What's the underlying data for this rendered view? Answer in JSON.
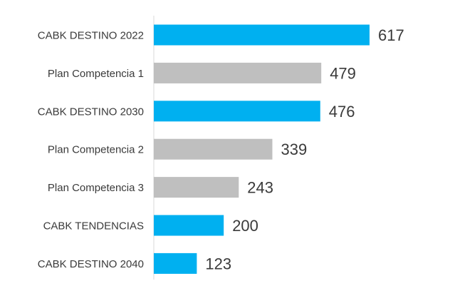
{
  "chart_data": {
    "type": "bar",
    "orientation": "horizontal",
    "categories": [
      "CABK DESTINO 2022",
      "Plan Competencia 1",
      "CABK DESTINO 2030",
      "Plan Competencia 2",
      "Plan Competencia 3",
      "CABK TENDENCIAS",
      "CABK DESTINO 2040"
    ],
    "values": [
      617,
      479,
      476,
      339,
      243,
      200,
      123
    ],
    "bar_colors": [
      "#00B0F0",
      "#BFBFBF",
      "#00B0F0",
      "#BFBFBF",
      "#BFBFBF",
      "#00B0F0",
      "#00B0F0"
    ],
    "xlim": [
      0,
      617
    ],
    "grid": false,
    "legend": "none",
    "title": "",
    "xlabel": "",
    "ylabel": ""
  },
  "colors": {
    "cabk": "#00B0F0",
    "competencia": "#BFBFBF",
    "axis": "#D9D9D9",
    "text": "#3A3A3A"
  }
}
